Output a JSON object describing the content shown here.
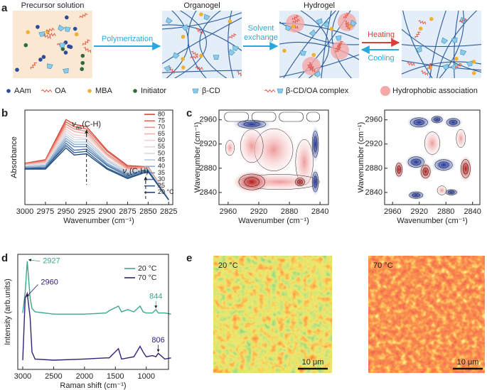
{
  "panel_labels": [
    "a",
    "b",
    "c",
    "d",
    "e"
  ],
  "schematic": {
    "stages": [
      "Precursor solution",
      "Organogel",
      "Hydrogel"
    ],
    "polymerization": "Polymerization",
    "solvent_exchange": [
      "Solvent",
      "exchange"
    ],
    "heating": "Heating",
    "cooling": "Cooling",
    "legend": [
      "AAm",
      "OA",
      "MBA",
      "Initiator",
      "β-CD",
      "β-CD/OA complex",
      "Hydrophobic association"
    ]
  },
  "chart_data": [
    {
      "type": "line",
      "xlabel": "Wavenumber (cm⁻¹)",
      "ylabel": "Absorbance",
      "xlim": [
        3000,
        2820
      ],
      "ylim": [
        0,
        0.8
      ],
      "xticks": [
        3000,
        2975,
        2950,
        2925,
        2900,
        2875,
        2850,
        2825
      ],
      "legend": "upper right",
      "annotations": [
        {
          "symbol": "ν",
          "sub": "as",
          "text": "(C-H)",
          "x": 2925
        },
        {
          "symbol": "ν",
          "sub": "s",
          "text": "(C-H)",
          "x": 2853
        }
      ],
      "x": [
        3000,
        2975,
        2950,
        2940,
        2925,
        2900,
        2875,
        2850,
        2825
      ],
      "series": [
        {
          "name": "80",
          "color": "#d6463a",
          "values": [
            0.35,
            0.38,
            0.72,
            0.68,
            0.66,
            0.46,
            0.33,
            0.32,
            0.05
          ]
        },
        {
          "name": "75",
          "color": "#e06a5c",
          "values": [
            0.35,
            0.37,
            0.7,
            0.66,
            0.64,
            0.45,
            0.32,
            0.32,
            0.05
          ]
        },
        {
          "name": "70",
          "color": "#e88f80",
          "values": [
            0.34,
            0.37,
            0.68,
            0.64,
            0.62,
            0.43,
            0.31,
            0.31,
            0.05
          ]
        },
        {
          "name": "65",
          "color": "#efb2a6",
          "values": [
            0.34,
            0.36,
            0.66,
            0.62,
            0.6,
            0.42,
            0.3,
            0.31,
            0.05
          ]
        },
        {
          "name": "60",
          "color": "#f2cfc8",
          "values": [
            0.33,
            0.35,
            0.64,
            0.59,
            0.58,
            0.41,
            0.29,
            0.31,
            0.05
          ]
        },
        {
          "name": "55",
          "color": "#e6d6dc",
          "values": [
            0.33,
            0.35,
            0.62,
            0.57,
            0.56,
            0.39,
            0.28,
            0.3,
            0.05
          ]
        },
        {
          "name": "50",
          "color": "#cfdbe6",
          "values": [
            0.33,
            0.34,
            0.6,
            0.55,
            0.55,
            0.38,
            0.28,
            0.3,
            0.05
          ]
        },
        {
          "name": "45",
          "color": "#b3c9de",
          "values": [
            0.32,
            0.33,
            0.58,
            0.53,
            0.53,
            0.37,
            0.27,
            0.3,
            0.04
          ]
        },
        {
          "name": "40",
          "color": "#8eafcf",
          "values": [
            0.32,
            0.33,
            0.56,
            0.51,
            0.51,
            0.35,
            0.26,
            0.29,
            0.04
          ]
        },
        {
          "name": "35",
          "color": "#6b93bd",
          "values": [
            0.31,
            0.32,
            0.54,
            0.49,
            0.49,
            0.34,
            0.25,
            0.29,
            0.04
          ]
        },
        {
          "name": "30",
          "color": "#4d78a8",
          "values": [
            0.31,
            0.31,
            0.52,
            0.46,
            0.47,
            0.33,
            0.24,
            0.29,
            0.04
          ]
        },
        {
          "name": "25",
          "color": "#335f92",
          "values": [
            0.3,
            0.31,
            0.5,
            0.44,
            0.45,
            0.31,
            0.23,
            0.28,
            0.04
          ]
        },
        {
          "name": "20 °C",
          "color": "#1f4a7a",
          "values": [
            0.3,
            0.3,
            0.48,
            0.42,
            0.43,
            0.3,
            0.22,
            0.28,
            0.04
          ]
        }
      ]
    },
    {
      "type": "contour",
      "xlabel": "Wavenumber (cm⁻¹)",
      "ylabel": "Wavenumber (cm⁻¹)",
      "xlim": [
        2972,
        2829
      ],
      "ylim": [
        2820,
        2976
      ],
      "xticks": [
        2960,
        2920,
        2880,
        2840
      ],
      "yticks": [
        2840,
        2880,
        2920,
        2960
      ]
    },
    {
      "type": "contour",
      "xlabel": "Wavenumber (cm⁻¹)",
      "ylabel": "Wavenumber (cm⁻¹)",
      "xlim": [
        2972,
        2829
      ],
      "ylim": [
        2820,
        2976
      ],
      "xticks": [
        2960,
        2920,
        2880,
        2840
      ],
      "yticks": [
        2840,
        2880,
        2920,
        2960
      ]
    },
    {
      "type": "line",
      "xlabel": "Raman shift (cm⁻¹)",
      "ylabel": "Intensity (arb.units)",
      "xlim": [
        3080,
        640
      ],
      "ylim": [
        0,
        1
      ],
      "xticks": [
        3000,
        2500,
        2000,
        1500,
        1000
      ],
      "legend": "upper right",
      "x": [
        3000,
        2960,
        2927,
        2880,
        2850,
        2800,
        2500,
        2000,
        1650,
        1600,
        1450,
        1400,
        1300,
        1200,
        1100,
        1050,
        1000,
        900,
        844,
        806,
        700,
        600
      ],
      "series": [
        {
          "name": "20 °C",
          "color": "#3aa88c",
          "annotations": [
            2927,
            844
          ],
          "values": [
            0.49,
            0.67,
            0.94,
            0.62,
            0.53,
            0.5,
            0.48,
            0.48,
            0.49,
            0.51,
            0.55,
            0.5,
            0.52,
            0.5,
            0.55,
            0.5,
            0.49,
            0.49,
            0.52,
            0.49,
            0.49,
            0.48
          ]
        },
        {
          "name": "70 °C",
          "color": "#35207a",
          "annotations": [
            2960,
            806
          ],
          "values": [
            0.08,
            0.62,
            0.66,
            0.45,
            0.15,
            0.09,
            0.08,
            0.09,
            0.1,
            0.1,
            0.18,
            0.09,
            0.1,
            0.11,
            0.2,
            0.15,
            0.11,
            0.12,
            0.11,
            0.14,
            0.09,
            0.1
          ]
        }
      ]
    }
  ],
  "images": {
    "labels": [
      "20 °C",
      "70 °C"
    ],
    "scale_bar": "10 μm"
  }
}
